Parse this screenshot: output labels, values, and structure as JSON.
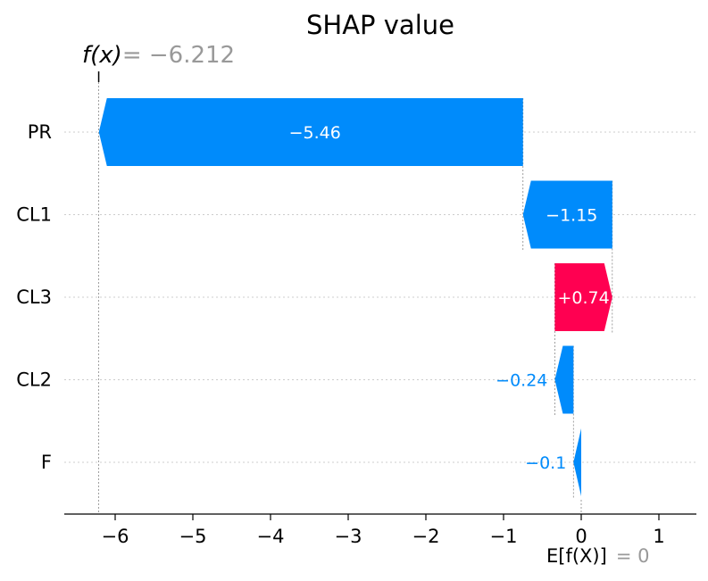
{
  "chart_data": {
    "type": "waterfall",
    "title": "SHAP value",
    "features": [
      "PR",
      "CL1",
      "CL3",
      "CL2",
      "F"
    ],
    "contributions": [
      -5.46,
      -1.15,
      0.74,
      -0.24,
      -0.1
    ],
    "bar_labels": [
      "−5.46",
      "−1.15",
      "+0.74",
      "−0.24",
      "−0.1"
    ],
    "base_value": 0,
    "output_value": -6.212,
    "fx_label": "f(x)",
    "fx_value_text": "= −6.212",
    "efx_label": "E[f(X)]",
    "efx_value_text": "= 0",
    "xlim": [
      -6.7,
      1.55
    ],
    "xticks": [
      -6,
      -5,
      -4,
      -3,
      -2,
      -1,
      0,
      1
    ],
    "xtick_labels": [
      "−6",
      "−5",
      "−4",
      "−3",
      "−2",
      "−1",
      "0",
      "1"
    ],
    "colors": {
      "positive": "#ff0051",
      "negative": "#008bfb",
      "grid": "#cccccc",
      "ref": "#888888",
      "muted": "#999999"
    }
  }
}
